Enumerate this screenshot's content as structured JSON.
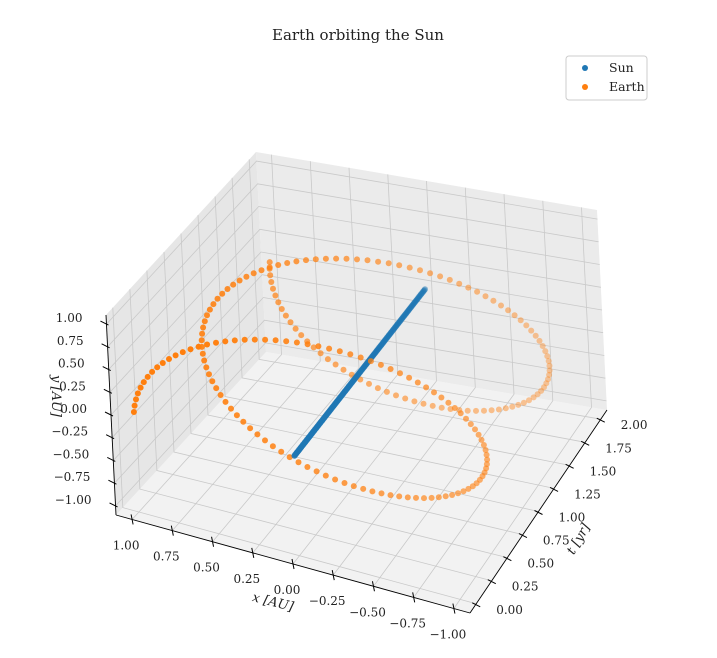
{
  "chart_data": {
    "type": "scatter",
    "projection": "3d",
    "title": "Earth orbiting the Sun",
    "xlabel": "x [AU]",
    "ylabel": "y [AU]",
    "zlabel": "t [yr]",
    "axis_map": {
      "x": "x",
      "vertical": "y",
      "depth": "t"
    },
    "xlim": [
      -1.1,
      1.1
    ],
    "ylim": [
      -1.1,
      1.1
    ],
    "tlim": [
      -0.1,
      2.1
    ],
    "x_ticks": [
      "1.00",
      "0.75",
      "0.50",
      "0.25",
      "0.00",
      "−0.25",
      "−0.50",
      "−0.75",
      "−1.00"
    ],
    "x_tick_values": [
      1.0,
      0.75,
      0.5,
      0.25,
      0.0,
      -0.25,
      -0.5,
      -0.75,
      -1.0
    ],
    "y_ticks": [
      "1.00",
      "0.75",
      "0.50",
      "0.25",
      "0.00",
      "−0.25",
      "−0.50",
      "−0.75",
      "−1.00"
    ],
    "y_tick_values": [
      1.0,
      0.75,
      0.5,
      0.25,
      0.0,
      -0.25,
      -0.5,
      -0.75,
      -1.0
    ],
    "t_ticks": [
      "0.00",
      "0.25",
      "0.50",
      "0.75",
      "1.00",
      "1.25",
      "1.50",
      "1.75",
      "2.00"
    ],
    "t_tick_values": [
      0.0,
      0.25,
      0.5,
      0.75,
      1.0,
      1.25,
      1.5,
      1.75,
      2.0
    ],
    "grid": true,
    "legend_position": "top-right",
    "series": [
      {
        "name": "Sun",
        "color": "#1f77b4",
        "marker": "circle",
        "description_values": {
          "x": 0.0,
          "y": 0.0,
          "t_start": 0.0,
          "t_end": 2.0,
          "samples": 200
        }
      },
      {
        "name": "Earth",
        "color": "#ff7f0e",
        "marker": "circle",
        "description_values": {
          "x": "cos(2πt)",
          "y": "sin(2πt)",
          "t_start": 0.0,
          "t_end": 2.0,
          "samples": 200,
          "radius_au": 1.0,
          "period_yr": 1.0
        }
      }
    ]
  }
}
